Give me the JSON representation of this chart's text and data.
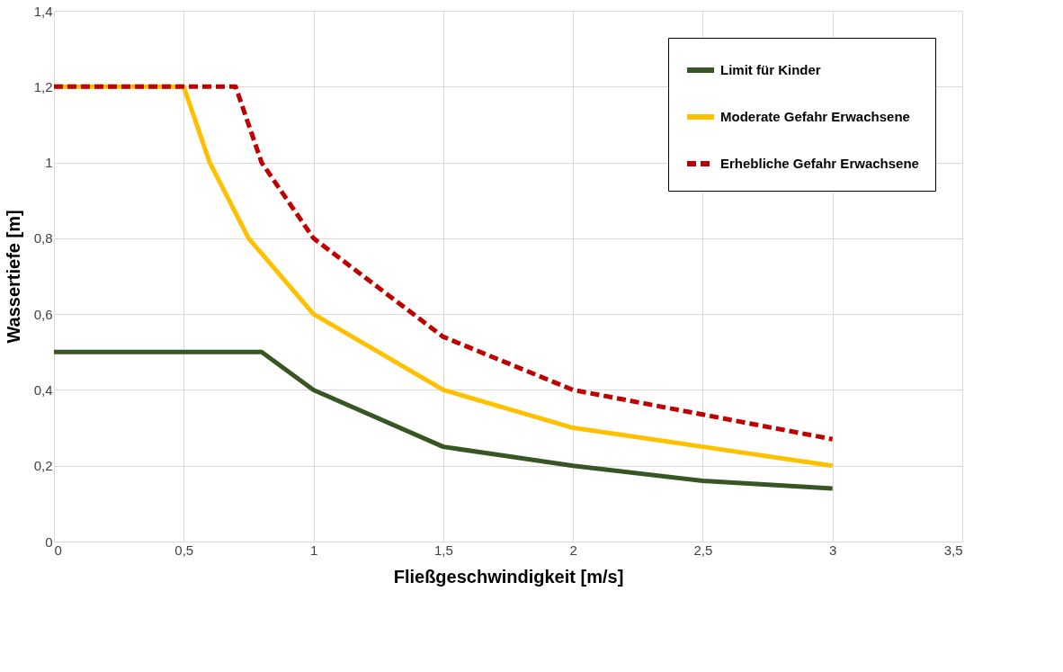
{
  "chart_data": {
    "type": "line",
    "xlabel": "Fließgeschwindigkeit [m/s]",
    "ylabel": "Wassertiefe [m]",
    "xlim": [
      0,
      3.5
    ],
    "ylim": [
      0,
      1.4
    ],
    "xticks": [
      0,
      {
        "value": 0.5,
        "label": "0,5"
      },
      1,
      {
        "value": 1.5,
        "label": "1,5"
      },
      2,
      {
        "value": 2.5,
        "label": "2,5"
      },
      3,
      {
        "value": 3.5,
        "label": "3,5"
      }
    ],
    "yticks": [
      0,
      {
        "value": 0.2,
        "label": "0,2"
      },
      {
        "value": 0.4,
        "label": "0,4"
      },
      {
        "value": 0.6,
        "label": "0,6"
      },
      {
        "value": 0.8,
        "label": "0,8"
      },
      1,
      {
        "value": 1.2,
        "label": "1,2"
      },
      {
        "value": 1.4,
        "label": "1,4"
      }
    ],
    "grid": true,
    "legend": "top right",
    "marker": "none",
    "series": [
      {
        "name": "Limit für Kinder",
        "color": "#375623",
        "line_style": "solid",
        "x": [
          0,
          0.8,
          1,
          1.5,
          2,
          2.5,
          3
        ],
        "values": [
          0.5,
          0.5,
          0.4,
          0.25,
          0.2,
          0.16,
          0.14
        ]
      },
      {
        "name": "Moderate Gefahr Erwachsene",
        "color": "#ffc000",
        "line_style": "solid",
        "x": [
          0,
          0.5,
          0.6,
          0.75,
          1,
          1.5,
          2,
          2.5,
          3
        ],
        "values": [
          1.2,
          1.2,
          1.0,
          0.8,
          0.6,
          0.4,
          0.3,
          0.25,
          0.2
        ]
      },
      {
        "name": "Erhebliche Gefahr Erwachsene",
        "color": "#c00000",
        "line_style": "dashed",
        "x": [
          0,
          0.7,
          0.8,
          1,
          1.5,
          2,
          2.5,
          3
        ],
        "values": [
          1.2,
          1.2,
          1.0,
          0.8,
          0.54,
          0.4,
          0.335,
          0.27
        ]
      }
    ]
  }
}
